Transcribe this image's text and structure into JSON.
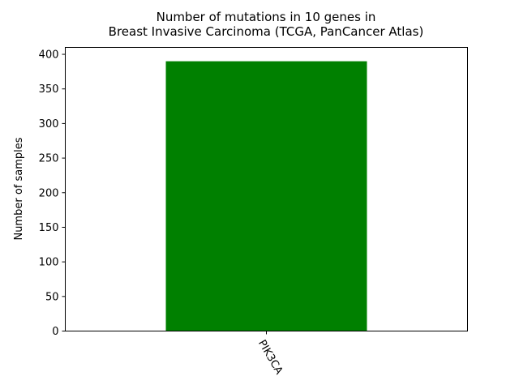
{
  "chart_data": {
    "type": "bar",
    "title_lines": [
      "Number of mutations in 10 genes in",
      "Breast Invasive Carcinoma (TCGA, PanCancer Atlas)"
    ],
    "xlabel": "",
    "ylabel": "Number of samples",
    "categories": [
      "PIK3CA"
    ],
    "values": [
      390
    ],
    "ylim": [
      0,
      410
    ],
    "yticks": [
      0,
      50,
      100,
      150,
      200,
      250,
      300,
      350,
      400
    ],
    "bar_color": "#008000",
    "grid": false,
    "legend": "none"
  }
}
